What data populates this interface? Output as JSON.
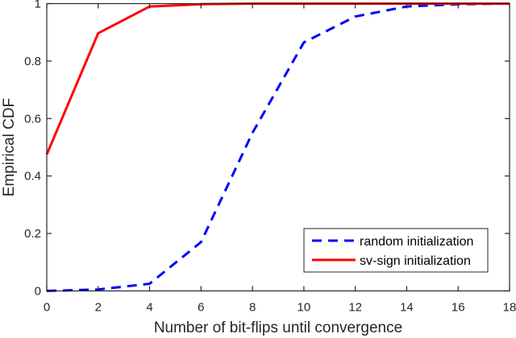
{
  "chart_data": {
    "type": "line",
    "title": "",
    "xlabel": "Number of bit-flips until convergence",
    "ylabel": "Empirical CDF",
    "xlim": [
      0,
      18
    ],
    "ylim": [
      0,
      1
    ],
    "xticks": [
      0,
      2,
      4,
      6,
      8,
      10,
      12,
      14,
      16,
      18
    ],
    "yticks": [
      0,
      0.2,
      0.4,
      0.6,
      0.8,
      1
    ],
    "ytick_labels": [
      "0",
      "0.2",
      "0.4",
      "0.6",
      "0.8",
      "1"
    ],
    "grid": false,
    "legend_position": "lower right",
    "x": [
      0,
      2,
      4,
      6,
      8,
      10,
      12,
      14,
      16,
      18
    ],
    "series": [
      {
        "name": "random initialization",
        "color": "#0000ff",
        "style": "dashed",
        "values": [
          0.0,
          0.005,
          0.025,
          0.17,
          0.55,
          0.865,
          0.955,
          0.99,
          0.998,
          1.0
        ]
      },
      {
        "name": "sv-sign initialization",
        "color": "#ff0000",
        "style": "solid",
        "values": [
          0.475,
          0.897,
          0.99,
          0.998,
          1.0,
          1.0,
          1.0,
          1.0,
          1.0,
          1.0
        ]
      }
    ]
  }
}
